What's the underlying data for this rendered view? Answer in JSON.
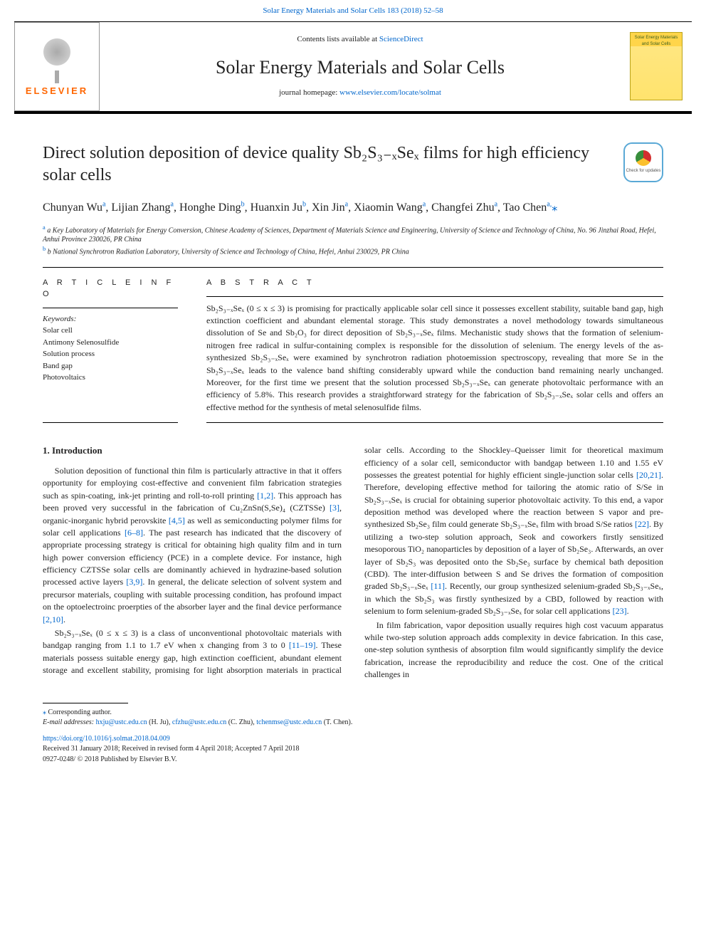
{
  "journal_ref_line": "Solar Energy Materials and Solar Cells 183 (2018) 52–58",
  "banner": {
    "contents_prefix": "Contents lists available at ",
    "contents_link": "ScienceDirect",
    "journal_title": "Solar Energy Materials and Solar Cells",
    "homepage_prefix": "journal homepage: ",
    "homepage_url": "www.elsevier.com/locate/solmat",
    "elsevier": "ELSEVIER",
    "cover_text": "Solar Energy Materials\nand Solar Cells"
  },
  "check_updates": "Check for updates",
  "article": {
    "title": "Direct solution deposition of device quality Sb₂S₃₋ₓSeₓ films for high efficiency solar cells",
    "authors_html": "Chunyan Wu<sup>a</sup>, Lijian Zhang<sup>a</sup>, Honghe Ding<sup>b</sup>, Huanxin Ju<sup>b</sup>, Xin Jin<sup>a</sup>, Xiaomin Wang<sup>a</sup>, Changfei Zhu<sup>a</sup>, Tao Chen<sup>a,</sup><span class='star'>⁎</span>",
    "affiliations": [
      "a Key Laboratory of Materials for Energy Conversion, Chinese Academy of Sciences, Department of Materials Science and Engineering, University of Science and Technology of China, No. 96 Jinzhai Road, Hefei, Anhui Province 230026, PR China",
      "b National Synchrotron Radiation Laboratory, University of Science and Technology of China, Hefei, Anhui 230029, PR China"
    ]
  },
  "info": {
    "heading": "A R T I C L E   I N F O",
    "keywords_label": "Keywords:",
    "keywords": [
      "Solar cell",
      "Antimony Selenosulfide",
      "Solution process",
      "Band gap",
      "Photovoltaics"
    ]
  },
  "abstract": {
    "heading": "A B S T R A C T",
    "text": "Sb₂S₃₋ₓSeₓ (0 ≤ x ≤ 3) is promising for practically applicable solar cell since it possesses excellent stability, suitable band gap, high extinction coefficient and abundant elemental storage. This study demonstrates a novel methodology towards simultaneous dissolution of Se and Sb₂O₃ for direct deposition of Sb₂S₃₋ₓSeₓ films. Mechanistic study shows that the formation of selenium-nitrogen free radical in sulfur-containing complex is responsible for the dissolution of selenium. The energy levels of the as-synthesized Sb₂S₃₋ₓSeₓ were examined by synchrotron radiation photoemission spectroscopy, revealing that more Se in the Sb₂S₃₋ₓSeₓ leads to the valence band shifting considerably upward while the conduction band remaining nearly unchanged. Moreover, for the first time we present that the solution processed Sb₂S₃₋ₓSeₓ can generate photovoltaic performance with an efficiency of 5.8%. This research provides a straightforward strategy for the fabrication of Sb₂S₃₋ₓSeₓ solar cells and offers an effective method for the synthesis of metal selenosulfide films."
  },
  "intro": {
    "heading": "1. Introduction",
    "p1": "Solution deposition of functional thin film is particularly attractive in that it offers opportunity for employing cost-effective and convenient film fabrication strategies such as spin-coating, ink-jet printing and roll-to-roll printing [1,2]. This approach has been proved very successful in the fabrication of Cu₂ZnSn(S,Se)₄ (CZTSSe) [3], organic-inorganic hybrid perovskite [4,5] as well as semiconducting polymer films for solar cell applications [6–8]. The past research has indicated that the discovery of appropriate processing strategy is critical for obtaining high quality film and in turn high power conversion efficiency (PCE) in a complete device. For instance, high efficiency CZTSSe solar cells are dominantly achieved in hydrazine-based solution processed active layers [3,9]. In general, the delicate selection of solvent system and precursor materials, coupling with suitable processing condition, has profound impact on the optoelectroinc proerpties of the absorber layer and the final device performance [2,10].",
    "p2": "Sb₂S₃₋ₓSeₓ (0 ≤ x ≤ 3) is a class of unconventional photovoltaic materials with bandgap ranging from 1.1 to 1.7 eV when x changing from 3 to 0 [11–19]. These materials possess suitable energy gap, high extinction coefficient, abundant element storage and excellent stability, promising for light absorption materials in practical solar cells. According to the Shockley–Queisser limit for theoretical maximum efficiency of a solar cell, semiconductor with bandgap between 1.10 and 1.55 eV possesses the greatest potential for highly efficient single-junction solar cells [20,21]. Therefore, developing effective method for tailoring the atomic ratio of S/Se in Sb₂S₃₋ₓSeₓ is crucial for obtaining superior photovoltaic activity. To this end, a vapor deposition method was developed where the reaction between S vapor and pre-synthesized Sb₂Se₃ film could generate Sb₂S₃₋ₓSeₓ film with broad S/Se ratios [22]. By utilizing a two-step solution approach, Seok and coworkers firstly sensitized mesoporous TiO₂ nanoparticles by deposition of a layer of Sb₂Se₃. Afterwards, an over layer of Sb₂S₃ was deposited onto the Sb₂Se₃ surface by chemical bath deposition (CBD). The inter-diffusion between S and Se drives the formation of composition graded Sb₂S₃₋ₓSeₓ [11]. Recently, our group synthesized selenium-graded Sb₂S₃₋ₓSeₓ, in which the Sb₂S₃ was firstly synthesized by a CBD, followed by reaction with selenium to form selenium-graded Sb₂S₃₋ₓSeₓ for solar cell applications [23].",
    "p3": "In film fabrication, vapor deposition usually requires high cost vacuum apparatus while two-step solution approach adds complexity in device fabrication. In this case, one-step solution synthesis of absorption film would significantly simplify the device fabrication, increase the reproducibility and reduce the cost. One of the critical challenges in"
  },
  "footer": {
    "corr": "Corresponding author.",
    "email_label": "E-mail addresses:",
    "emails": [
      {
        "addr": "hxju@ustc.edu.cn",
        "who": "(H. Ju)"
      },
      {
        "addr": "cfzhu@ustc.edu.cn",
        "who": "(C. Zhu)"
      },
      {
        "addr": "tchenmse@ustc.edu.cn",
        "who": "(T. Chen)."
      }
    ],
    "doi": "https://doi.org/10.1016/j.solmat.2018.04.009",
    "history": "Received 31 January 2018; Received in revised form 4 April 2018; Accepted 7 April 2018",
    "copyright": "0927-0248/ © 2018 Published by Elsevier B.V."
  },
  "ref_links": {
    "r1": "[1,2]",
    "r2": "[3]",
    "r3": "[4,5]",
    "r4": "[6–8]",
    "r5": "[3,9]",
    "r6": "[2,10]",
    "r7": "[11–19]",
    "r8": "[20,21]",
    "r9": "[22]",
    "r10": "[11]",
    "r11": "[23]"
  },
  "colors": {
    "link": "#0066cc",
    "elsevier_orange": "#ff6600",
    "border": "#000000"
  }
}
